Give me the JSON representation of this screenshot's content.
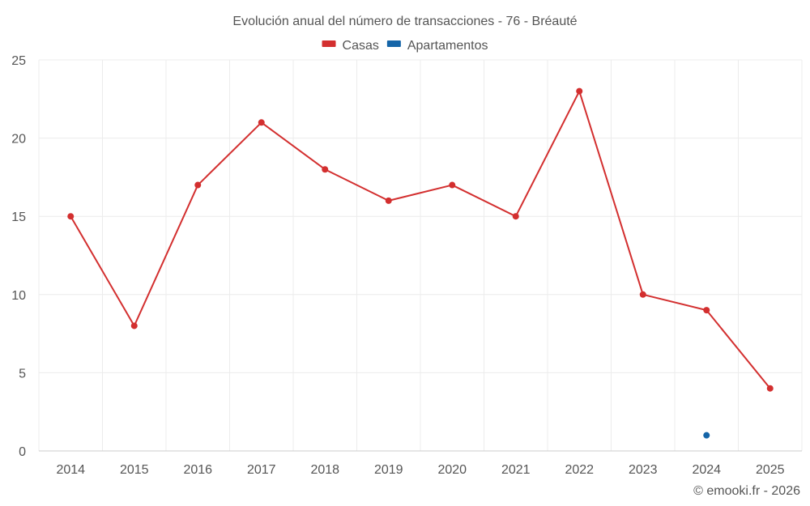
{
  "chart_data": {
    "type": "line",
    "title": "Evolución anual del número de transacciones - 76 - Bréauté",
    "categories": [
      "2014",
      "2015",
      "2016",
      "2017",
      "2018",
      "2019",
      "2020",
      "2021",
      "2022",
      "2023",
      "2024",
      "2025"
    ],
    "series": [
      {
        "name": "Casas",
        "color": "#d32f2f",
        "values": [
          15,
          8,
          17,
          21,
          18,
          16,
          17,
          15,
          23,
          10,
          9,
          4
        ]
      },
      {
        "name": "Apartamentos",
        "color": "#1565a8",
        "values": [
          null,
          null,
          null,
          null,
          null,
          null,
          null,
          null,
          null,
          null,
          1,
          null
        ]
      }
    ],
    "ylim": [
      0,
      25
    ],
    "yticks": [
      "0",
      "5",
      "10",
      "15",
      "20",
      "25"
    ],
    "grid": true,
    "legend": "top-center",
    "footer": "© emooki.fr - 2026"
  }
}
